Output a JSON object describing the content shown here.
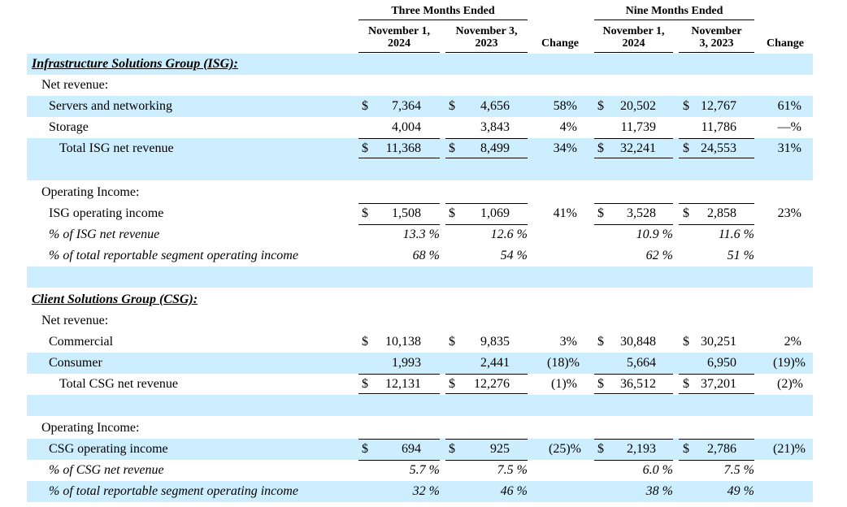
{
  "header": {
    "three_months": "Three Months Ended",
    "nine_months": "Nine Months Ended",
    "col1": [
      "November 1,",
      "2024"
    ],
    "col2": [
      "November 3,",
      "2023"
    ],
    "col3": [
      "November 1,",
      "2024"
    ],
    "col4": [
      "November",
      "3, 2023"
    ],
    "change": "Change"
  },
  "isg": {
    "title": "Infrastructure Solutions Group (ISG):",
    "net_revenue_label": "Net revenue:",
    "servers": {
      "label": "Servers and networking",
      "c1": "7,364",
      "c2": "4,656",
      "chg3": "58%",
      "c3": "20,502",
      "c4": "12,767",
      "chg9": "61%"
    },
    "storage": {
      "label": "Storage",
      "c1": "4,004",
      "c2": "3,843",
      "chg3": "4%",
      "c3": "11,739",
      "c4": "11,786",
      "chg9": "—%"
    },
    "total": {
      "label": "Total ISG net revenue",
      "c1": "11,368",
      "c2": "8,499",
      "chg3": "34%",
      "c3": "32,241",
      "c4": "24,553",
      "chg9": "31%"
    },
    "op_income_label": "Operating Income:",
    "op_income": {
      "label": "ISG operating income",
      "c1": "1,508",
      "c2": "1,069",
      "chg3": "41%",
      "c3": "3,528",
      "c4": "2,858",
      "chg9": "23%"
    },
    "pct_net": {
      "label": "% of ISG net revenue",
      "c1": "13.3 %",
      "c2": "12.6 %",
      "c3": "10.9 %",
      "c4": "11.6 %"
    },
    "pct_total": {
      "label": "% of total reportable segment operating income",
      "c1": "68 %",
      "c2": "54 %",
      "c3": "62 %",
      "c4": "51 %"
    }
  },
  "csg": {
    "title": "Client Solutions Group (CSG):",
    "net_revenue_label": "Net revenue:",
    "commercial": {
      "label": "Commercial",
      "c1": "10,138",
      "c2": "9,835",
      "chg3": "3%",
      "c3": "30,848",
      "c4": "30,251",
      "chg9": "2%"
    },
    "consumer": {
      "label": "Consumer",
      "c1": "1,993",
      "c2": "2,441",
      "chg3": "(18)%",
      "c3": "5,664",
      "c4": "6,950",
      "chg9": "(19)%"
    },
    "total": {
      "label": "Total CSG net revenue",
      "c1": "12,131",
      "c2": "12,276",
      "chg3": "(1)%",
      "c3": "36,512",
      "c4": "37,201",
      "chg9": "(2)%"
    },
    "op_income_label": "Operating Income:",
    "op_income": {
      "label": "CSG operating income",
      "c1": "694",
      "c2": "925",
      "chg3": "(25)%",
      "c3": "2,193",
      "c4": "2,786",
      "chg9": "(21)%"
    },
    "pct_net": {
      "label": "% of CSG net revenue",
      "c1": "5.7 %",
      "c2": "7.5 %",
      "c3": "6.0 %",
      "c4": "7.5 %"
    },
    "pct_total": {
      "label": "% of total reportable segment operating income",
      "c1": "32 %",
      "c2": "46 %",
      "c3": "38 %",
      "c4": "49 %"
    }
  },
  "currency_symbol": "$"
}
